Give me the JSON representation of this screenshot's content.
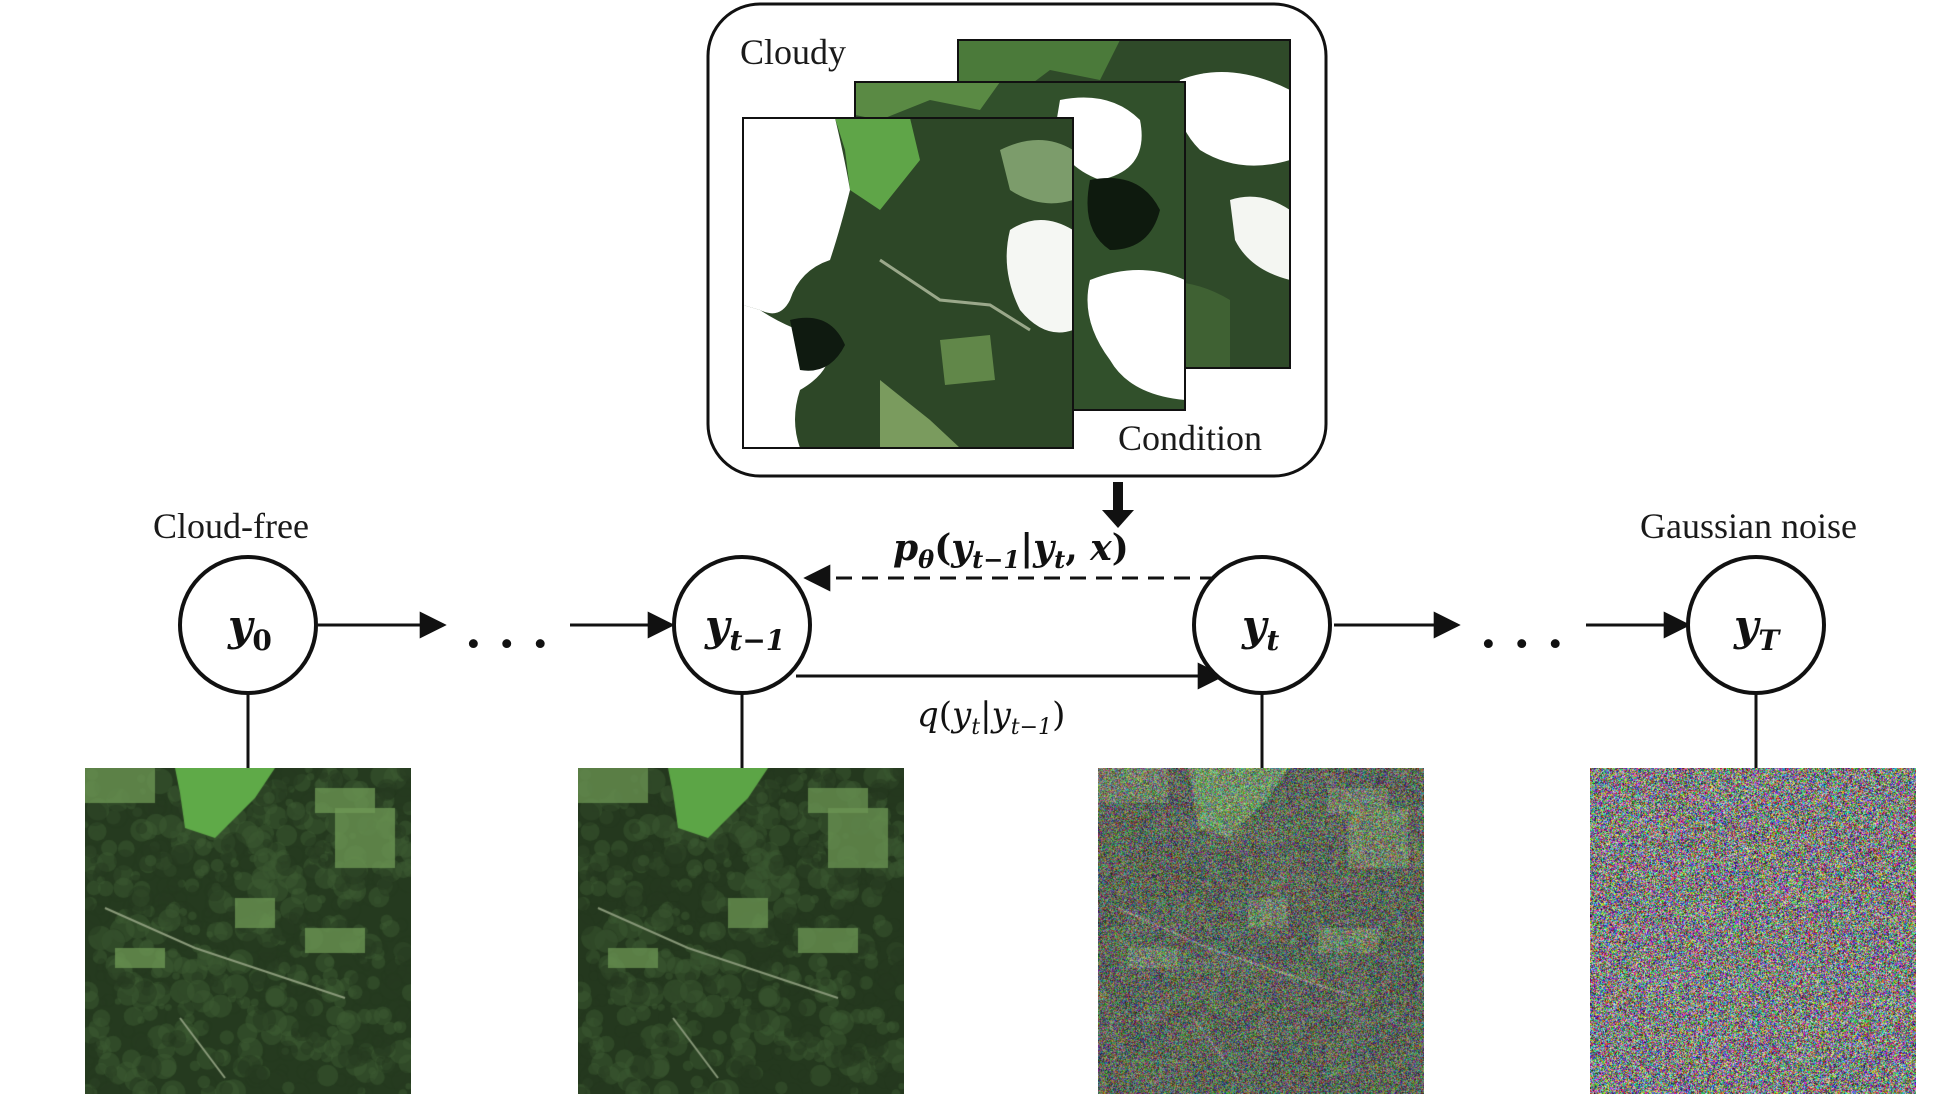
{
  "labels": {
    "cloudy": "Cloudy",
    "condition": "Condition",
    "cloud_free": "Cloud-free",
    "gaussian_noise": "Gaussian noise",
    "ellipsis": "· · ·"
  },
  "nodes": {
    "y0": {
      "base": "y",
      "sub": "0"
    },
    "yt_minus_1": {
      "base": "y",
      "sub": "t−1"
    },
    "yt": {
      "base": "y",
      "sub": "t"
    },
    "yT": {
      "base": "y",
      "sub": "T"
    }
  },
  "formulas": {
    "reverse": {
      "p": "p",
      "theta": "θ",
      "open": "(",
      "y1": "y",
      "y1_sub": "t−1",
      "bar": "|",
      "y2": "y",
      "y2_sub": "t",
      "comma": ", ",
      "x": "x",
      "close": ")"
    },
    "forward": {
      "q": "q",
      "open": "(",
      "y1": "y",
      "y1_sub": "t",
      "bar": "|",
      "y2": "y",
      "y2_sub": "t−1",
      "close": ")"
    }
  },
  "images": [
    {
      "name": "cloud-free-image",
      "noise_level": 0.0
    },
    {
      "name": "step-t-minus-1-image",
      "noise_level": 0.15
    },
    {
      "name": "step-t-image",
      "noise_level": 0.6
    },
    {
      "name": "gaussian-noise-image",
      "noise_level": 1.0
    }
  ],
  "colors": {
    "forest_dark": "#253a1f",
    "forest_mid": "#3c5a31",
    "field_light": "#6f9a55",
    "bright_field": "#5faa48",
    "cloud": "#ffffff",
    "line": "#111111"
  }
}
